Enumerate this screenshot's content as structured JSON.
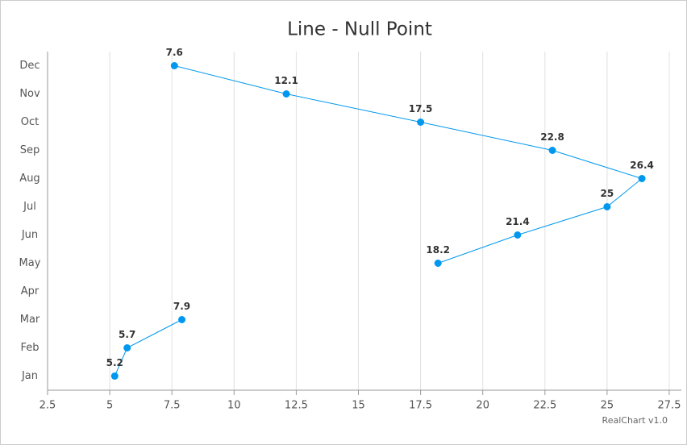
{
  "chart_data": {
    "type": "line",
    "orientation": "horizontal",
    "title": "Line - Null Point",
    "categories": [
      "Jan",
      "Feb",
      "Mar",
      "Apr",
      "May",
      "Jun",
      "Jul",
      "Aug",
      "Sep",
      "Oct",
      "Nov",
      "Dec"
    ],
    "values": [
      5.2,
      5.7,
      7.9,
      null,
      18.2,
      21.4,
      25,
      26.4,
      22.8,
      17.5,
      12.1,
      7.6
    ],
    "color": "#0098ef",
    "xlim": [
      2.5,
      27.5
    ],
    "xticks": [
      2.5,
      5,
      7.5,
      10,
      12.5,
      15,
      17.5,
      20,
      22.5,
      25,
      27.5
    ],
    "grid": true,
    "credits": "RealChart v1.0"
  }
}
